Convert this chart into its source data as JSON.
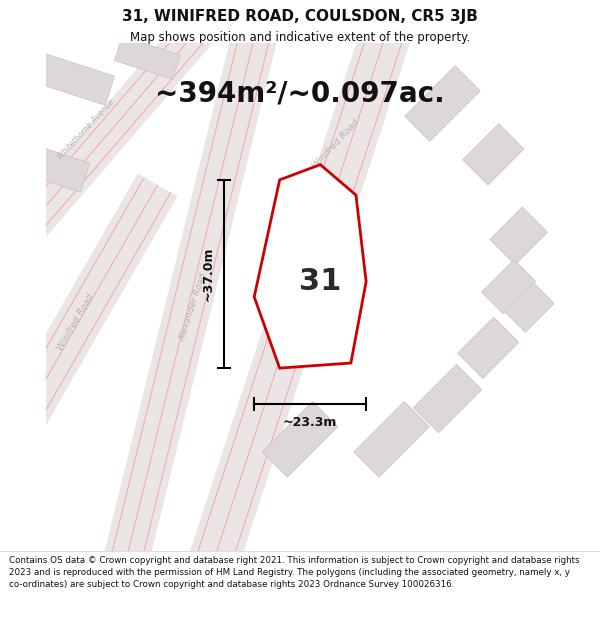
{
  "title": "31, WINIFRED ROAD, COULSDON, CR5 3JB",
  "subtitle": "Map shows position and indicative extent of the property.",
  "area_text": "~394m²/~0.097ac.",
  "dimension_width": "~23.3m",
  "dimension_height": "~37.0m",
  "plot_number": "31",
  "footer": "Contains OS data © Crown copyright and database right 2021. This information is subject to Crown copyright and database rights 2023 and is reproduced with the permission of HM Land Registry. The polygons (including the associated geometry, namely x, y co-ordinates) are subject to Crown copyright and database rights 2023 Ordnance Survey 100026316.",
  "bg_color": "#f8f5f5",
  "map_bg": "#f8f5f5",
  "road_fill": "#ece5e5",
  "road_line": "#f0a8a8",
  "block_color": "#ddd7d7",
  "block_outline": "#ccc6c6",
  "plot_fill": "#ffffff",
  "plot_outline": "#cc0000",
  "road_label_color": "#b8b0b0",
  "title_color": "#111111",
  "footer_color": "#111111",
  "dim_color": "#111111",
  "title_fontsize": 11,
  "subtitle_fontsize": 8.5,
  "area_fontsize": 20,
  "plotnum_fontsize": 22,
  "dim_fontsize": 9,
  "footer_fontsize": 6.3
}
